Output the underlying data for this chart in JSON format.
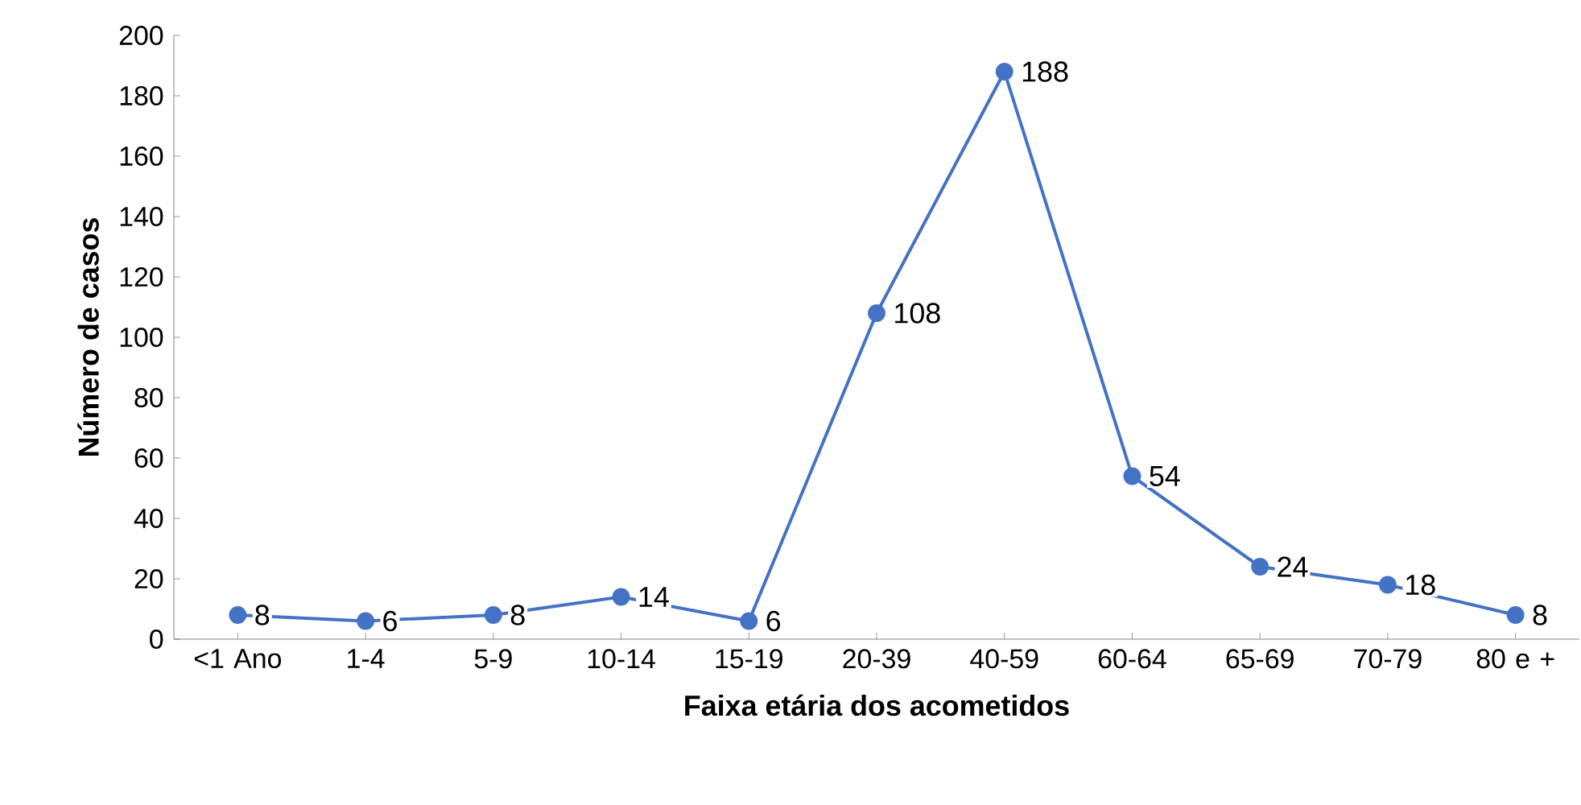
{
  "chart_data": {
    "type": "line",
    "xlabel": "Faixa etária dos acometidos",
    "ylabel": "Número de casos",
    "categories": [
      "<1 Ano",
      "1-4",
      "5-9",
      "10-14",
      "15-19",
      "20-39",
      "40-59",
      "60-64",
      "65-69",
      "70-79",
      "80 e +"
    ],
    "values": [
      8,
      6,
      8,
      14,
      6,
      108,
      188,
      54,
      24,
      18,
      8
    ],
    "color": "#4472c4",
    "marker": "circle",
    "data_labels": true,
    "grid": false,
    "ylim": [
      0,
      200
    ],
    "yticks": [
      0,
      20,
      40,
      60,
      80,
      100,
      120,
      140,
      160,
      180,
      200
    ]
  }
}
